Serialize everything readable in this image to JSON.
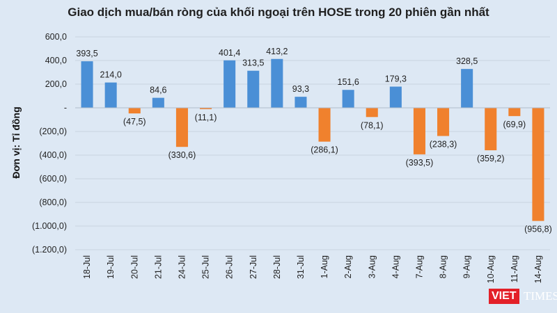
{
  "chart_data": {
    "type": "bar",
    "title": "Giao dịch mua/bán ròng của khối ngoại trên HOSE trong 20 phiên gần nhất",
    "ylabel": "Đơn vị: Tỉ đồng",
    "xlabel": "",
    "ylim": [
      -1200,
      600
    ],
    "yticks": [
      600,
      400,
      200,
      0,
      -200,
      -400,
      -600,
      -800,
      -1000,
      -1200
    ],
    "ytick_labels": [
      "600,0",
      "400,0",
      "200,0",
      "-",
      "(200,0)",
      "(400,0)",
      "(600,0)",
      "(800,0)",
      "(1.000,0)",
      "(1.200,0)"
    ],
    "grid": true,
    "categories": [
      "18-Jul",
      "19-Jul",
      "20-Jul",
      "21-Jul",
      "24-Jul",
      "25-Jul",
      "26-Jul",
      "27-Jul",
      "28-Jul",
      "31-Jul",
      "1-Aug",
      "2-Aug",
      "3-Aug",
      "4-Aug",
      "7-Aug",
      "8-Aug",
      "9-Aug",
      "10-Aug",
      "11-Aug",
      "14-Aug"
    ],
    "values": [
      393.5,
      214.0,
      -47.5,
      84.6,
      -330.6,
      -11.1,
      401.4,
      313.5,
      413.2,
      93.3,
      -286.1,
      151.6,
      -78.1,
      179.3,
      -393.5,
      -238.3,
      328.5,
      -359.2,
      -69.9,
      -956.8
    ],
    "data_labels": [
      "393,5",
      "214,0",
      "(47,5)",
      "84,6",
      "(330,6)",
      "(11,1)",
      "401,4",
      "313,5",
      "413,2",
      "93,3",
      "(286,1)",
      "151,6",
      "(78,1)",
      "179,3",
      "(393,5)",
      "(238,3)",
      "328,5",
      "(359,2)",
      "(69,9)",
      "(956,8)"
    ],
    "colors": {
      "positive": "#4a8fd6",
      "negative": "#f0812d",
      "background": "#dde8f4"
    }
  },
  "watermark": "VIETTIMES"
}
